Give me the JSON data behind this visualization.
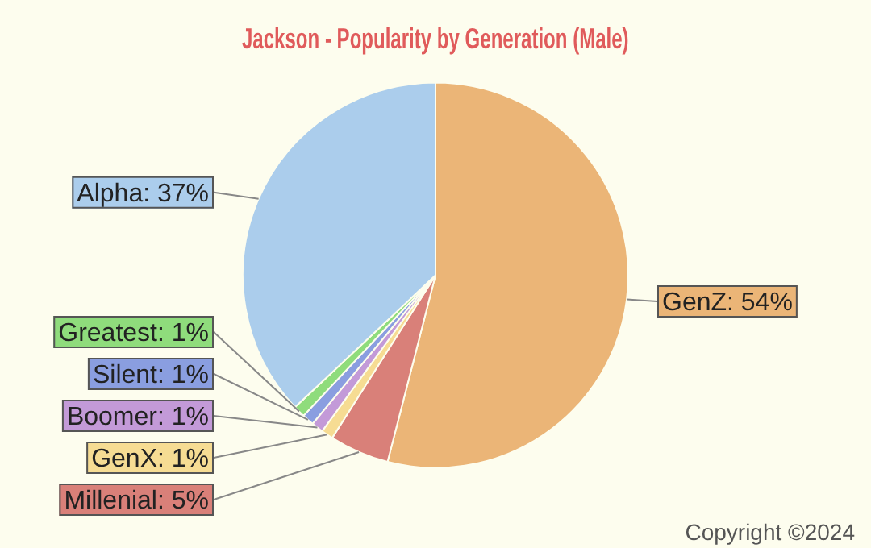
{
  "chart_data": {
    "type": "pie",
    "title": "Jackson - Popularity by Generation (Male)",
    "categories": [
      "GenZ",
      "Millenial",
      "GenX",
      "Boomer",
      "Silent",
      "Greatest",
      "Alpha"
    ],
    "values": [
      54,
      5,
      1,
      1,
      1,
      1,
      37
    ],
    "value_labels": [
      "54%",
      "5%",
      "1%",
      "1%",
      "1%",
      "1%",
      "37%"
    ],
    "colors": [
      "#ebb577",
      "#d98079",
      "#f6dc93",
      "#c39ad8",
      "#8a9ee0",
      "#8fdc7c",
      "#abcdec"
    ],
    "legend": false,
    "annotations": [
      "Copyright ©2024"
    ]
  }
}
